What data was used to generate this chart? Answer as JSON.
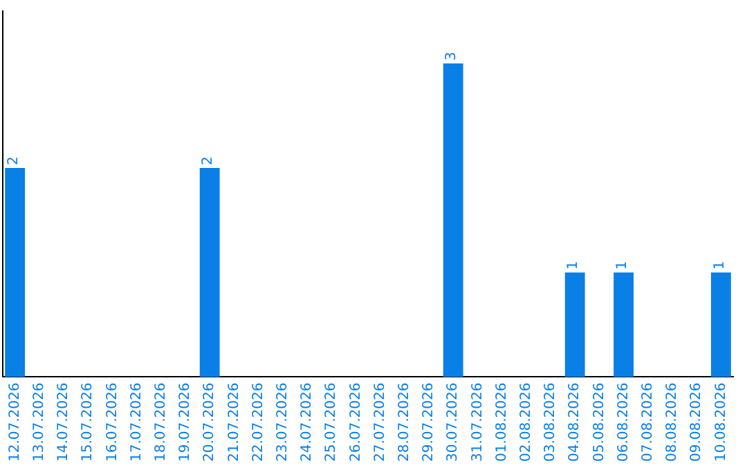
{
  "chart_data": {
    "type": "bar",
    "categories": [
      "12.07.2026",
      "13.07.2026",
      "14.07.2026",
      "15.07.2026",
      "16.07.2026",
      "17.07.2026",
      "18.07.2026",
      "19.07.2026",
      "20.07.2026",
      "21.07.2026",
      "22.07.2026",
      "23.07.2026",
      "24.07.2026",
      "25.07.2026",
      "26.07.2026",
      "27.07.2026",
      "28.07.2026",
      "29.07.2026",
      "30.07.2026",
      "31.07.2026",
      "01.08.2026",
      "02.08.2026",
      "03.08.2026",
      "04.08.2026",
      "05.08.2026",
      "06.08.2026",
      "07.08.2026",
      "08.08.2026",
      "09.08.2026",
      "10.08.2026"
    ],
    "values": [
      2,
      0,
      0,
      0,
      0,
      0,
      0,
      0,
      2,
      0,
      0,
      0,
      0,
      0,
      0,
      0,
      0,
      0,
      3,
      0,
      0,
      0,
      0,
      1,
      0,
      1,
      0,
      0,
      0,
      1
    ],
    "value_labels": [
      "2",
      null,
      null,
      null,
      null,
      null,
      null,
      null,
      "2",
      null,
      null,
      null,
      null,
      null,
      null,
      null,
      null,
      null,
      "3",
      null,
      null,
      null,
      null,
      "1",
      null,
      "1",
      null,
      null,
      null,
      "1"
    ],
    "color": "#0a7fe6",
    "grid": false,
    "legend": false,
    "tick_labels": "x"
  }
}
